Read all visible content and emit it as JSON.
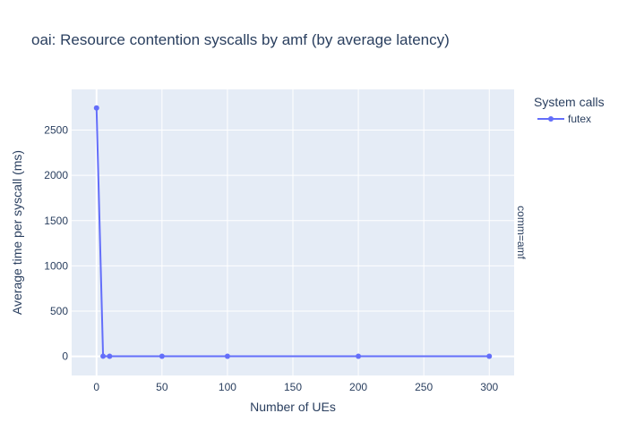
{
  "chart_data": {
    "type": "line",
    "title": "oai: Resource contention syscalls by amf (by average latency)",
    "xlabel": "Number of UEs",
    "ylabel": "Average time per syscall (ms)",
    "facet_label": "comm=amf",
    "legend_title": "System calls",
    "legend_position": "top-right",
    "grid": true,
    "xlim": [
      -19,
      319
    ],
    "ylim": [
      -211,
      2950
    ],
    "x_ticks": [
      0,
      50,
      100,
      150,
      200,
      250,
      300
    ],
    "y_ticks": [
      0,
      500,
      1000,
      1500,
      2000,
      2500
    ],
    "series": [
      {
        "name": "futex",
        "color": "#636efa",
        "x": [
          0,
          5,
          10,
          50,
          100,
          200,
          300
        ],
        "y": [
          2745,
          2,
          1,
          1,
          1,
          1,
          1
        ]
      }
    ]
  }
}
